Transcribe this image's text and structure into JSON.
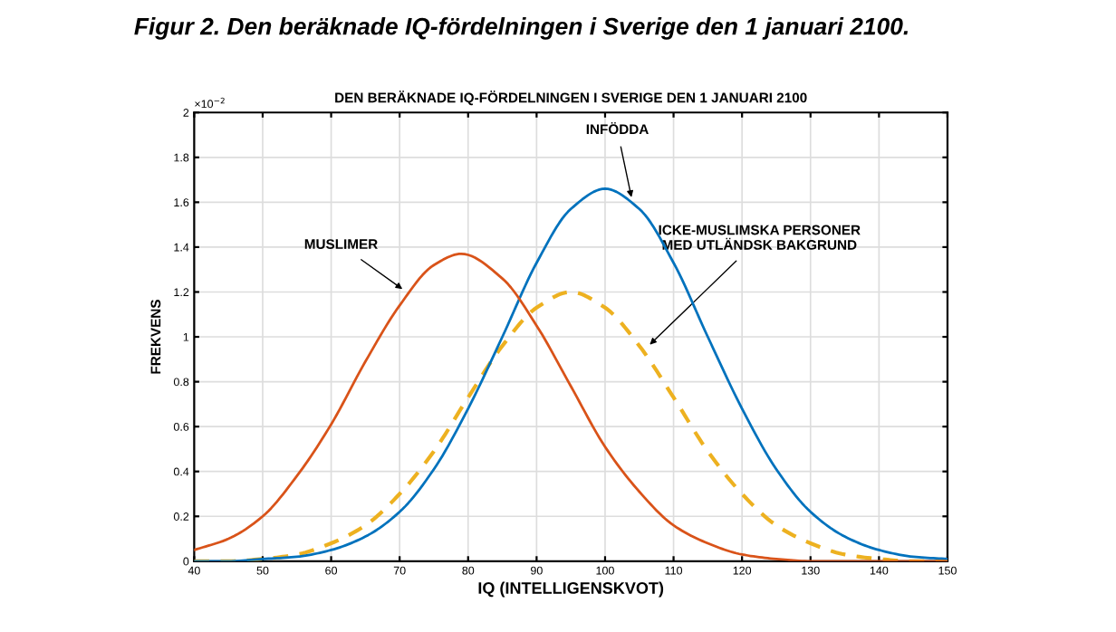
{
  "chart_data": {
    "type": "line",
    "title": "Figur 2. Den beräknade IQ-fördelningen i Sverige den 1 januari 2100.",
    "subtitle": "DEN BERÄKNADE IQ-FÖRDELNINGEN I SVERIGE DEN 1 JANUARI 2100",
    "xlabel": "IQ (INTELLIGENSKVOT)",
    "ylabel": "FREKVENS",
    "x": [
      40,
      45,
      50,
      55,
      60,
      65,
      70,
      75,
      79,
      85,
      90,
      95,
      100,
      105,
      110,
      115,
      120,
      125,
      130,
      135,
      140,
      145,
      150
    ],
    "series": [
      {
        "color": "#d95319",
        "line_style": "solid",
        "values": [
          0.05,
          0.1,
          0.2,
          0.38,
          0.61,
          0.89,
          1.14,
          1.32,
          1.37,
          1.26,
          1.05,
          0.78,
          0.51,
          0.31,
          0.16,
          0.08,
          0.03,
          0.01,
          0,
          0,
          0,
          0,
          0
        ]
      },
      {
        "color": "#0072bd",
        "line_style": "solid",
        "x": [
          40,
          45,
          50,
          55,
          60,
          65,
          70,
          75,
          80,
          85,
          90,
          95,
          100,
          105,
          110,
          115,
          120,
          125,
          130,
          135,
          140,
          145,
          150
        ],
        "values": [
          0,
          0,
          0.01,
          0.02,
          0.05,
          0.11,
          0.22,
          0.41,
          0.68,
          1.0,
          1.33,
          1.57,
          1.66,
          1.57,
          1.33,
          1.0,
          0.68,
          0.41,
          0.22,
          0.11,
          0.05,
          0.02,
          0.01
        ]
      },
      {
        "color": "#edb120",
        "line_style": "dashed",
        "x": [
          40,
          45,
          50,
          55,
          60,
          65,
          70,
          75,
          80,
          85,
          90,
          95,
          100,
          105,
          110,
          115,
          120,
          125,
          130,
          135,
          140,
          145,
          150
        ],
        "values": [
          0,
          0,
          0.01,
          0.03,
          0.08,
          0.16,
          0.3,
          0.49,
          0.73,
          0.96,
          1.13,
          1.2,
          1.13,
          0.96,
          0.73,
          0.49,
          0.3,
          0.16,
          0.08,
          0.03,
          0.01,
          0,
          0
        ]
      }
    ],
    "annotations": [
      {
        "text": "MUSLIMER",
        "x": 71,
        "y": 1.2
      },
      {
        "text": "INFÖDDA",
        "x": 104,
        "y": 1.6
      },
      {
        "text": "ICKE-MUSLIMSKA PERSONER\nMED UTLÄNDSK BAKGRUND",
        "x": 106,
        "y": 0.95
      },
      "×10$^{−2}$"
    ],
    "xlim": [
      40,
      150
    ],
    "ylim": [
      0,
      2
    ],
    "xticks": [
      40,
      50,
      60,
      70,
      80,
      90,
      100,
      110,
      120,
      130,
      140,
      150
    ],
    "yticks": [
      0,
      0.2,
      0.4,
      0.6,
      0.8,
      1,
      1.2,
      1.4,
      1.6,
      1.8,
      2
    ],
    "grid": true,
    "marker": "none"
  }
}
